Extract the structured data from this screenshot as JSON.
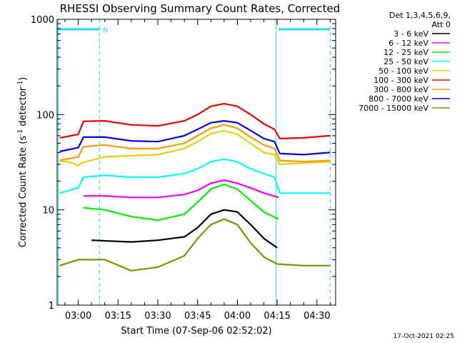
{
  "chart_data": {
    "type": "line",
    "title": "RHESSI Observing Summary Count Rates, Corrected",
    "xlabel": "Start Time (07-Sep-06 02:52:02)",
    "ylabel_main": "Corrected Count Rate (s",
    "ylabel_sup1": "-1",
    "ylabel_mid": " detector",
    "ylabel_sup2": "-1",
    "ylabel_end": ")",
    "yscale": "log",
    "ylim": [
      1,
      1000
    ],
    "xlim_min": [
      -7.967,
      97.033
    ],
    "y_ticks": [
      {
        "value": 1,
        "label": "1"
      },
      {
        "value": 10,
        "label": "10"
      },
      {
        "value": 100,
        "label": "100"
      },
      {
        "value": 1000,
        "label": "1000"
      }
    ],
    "x_ticks": [
      {
        "value": 0,
        "label": "03:00"
      },
      {
        "value": 15,
        "label": "03:15"
      },
      {
        "value": 30,
        "label": "03:30"
      },
      {
        "value": 45,
        "label": "03:45"
      },
      {
        "value": 60,
        "label": "04:00"
      },
      {
        "value": 75,
        "label": "04:15"
      },
      {
        "value": 90,
        "label": "04:30"
      }
    ],
    "legend_header": [
      "Det 1,3,4,5,6,9,",
      "Att 0"
    ],
    "legend_position": "right",
    "timestamp": "17-Oct-2021 02:25",
    "night_marker": {
      "label": "N",
      "segments": [
        [
          -7.967,
          8.0
        ],
        [
          75.5,
          95.0
        ]
      ],
      "dashed_at": [
        8.0,
        95.0
      ]
    },
    "eclipse_lines": [
      -7.5,
      74.6
    ],
    "series": [
      {
        "name": "3 - 6 keV",
        "color": "#000000",
        "points": [
          [
            5,
            4.8
          ],
          [
            20,
            4.6
          ],
          [
            30,
            4.8
          ],
          [
            40,
            5.2
          ],
          [
            45,
            6.5
          ],
          [
            50,
            9
          ],
          [
            55,
            10
          ],
          [
            60,
            9.5
          ],
          [
            65,
            7
          ],
          [
            70,
            5
          ],
          [
            75,
            4
          ]
        ]
      },
      {
        "name": "6 - 12 keV",
        "color": "#ee00ee",
        "points": [
          [
            2,
            14
          ],
          [
            10,
            14
          ],
          [
            20,
            13.5
          ],
          [
            30,
            13.5
          ],
          [
            40,
            14.5
          ],
          [
            45,
            16
          ],
          [
            50,
            19
          ],
          [
            55,
            20.5
          ],
          [
            60,
            19
          ],
          [
            65,
            17
          ],
          [
            70,
            15
          ],
          [
            75.5,
            13.5
          ]
        ]
      },
      {
        "name": "12 - 25 keV",
        "color": "#00ee00",
        "points": [
          [
            2,
            10.5
          ],
          [
            10,
            10
          ],
          [
            20,
            8.5
          ],
          [
            30,
            7.8
          ],
          [
            40,
            9
          ],
          [
            45,
            12
          ],
          [
            50,
            16.5
          ],
          [
            55,
            18.5
          ],
          [
            60,
            16.5
          ],
          [
            65,
            12.5
          ],
          [
            70,
            9.5
          ],
          [
            75.5,
            8
          ]
        ]
      },
      {
        "name": "25 - 50 keV",
        "color": "#00ffff",
        "points": [
          [
            -7,
            15
          ],
          [
            0,
            17
          ],
          [
            2,
            22
          ],
          [
            10,
            23
          ],
          [
            20,
            22
          ],
          [
            30,
            22
          ],
          [
            40,
            24
          ],
          [
            45,
            27
          ],
          [
            50,
            32
          ],
          [
            55,
            34
          ],
          [
            60,
            32
          ],
          [
            65,
            27
          ],
          [
            70,
            24
          ],
          [
            74,
            22
          ],
          [
            76,
            15
          ],
          [
            85,
            15
          ],
          [
            95,
            15
          ]
        ]
      },
      {
        "name": "50 - 100 keV",
        "color": "#e6d200",
        "points": [
          [
            -7,
            33
          ],
          [
            -2,
            31
          ],
          [
            0,
            29
          ],
          [
            1,
            31
          ],
          [
            10,
            36
          ],
          [
            20,
            37
          ],
          [
            30,
            38
          ],
          [
            40,
            44
          ],
          [
            45,
            52
          ],
          [
            50,
            63
          ],
          [
            55,
            68
          ],
          [
            60,
            62
          ],
          [
            65,
            50
          ],
          [
            70,
            40
          ],
          [
            74,
            38
          ],
          [
            76,
            30
          ],
          [
            85,
            31
          ],
          [
            95,
            32
          ]
        ]
      },
      {
        "name": "100 - 300 keV",
        "color": "#ee0000",
        "points": [
          [
            -7,
            57
          ],
          [
            0,
            62
          ],
          [
            2,
            85
          ],
          [
            10,
            86
          ],
          [
            20,
            78
          ],
          [
            30,
            76
          ],
          [
            40,
            86
          ],
          [
            45,
            100
          ],
          [
            50,
            122
          ],
          [
            55,
            130
          ],
          [
            60,
            122
          ],
          [
            65,
            100
          ],
          [
            70,
            80
          ],
          [
            74,
            70
          ],
          [
            76,
            56
          ],
          [
            85,
            57
          ],
          [
            95,
            60
          ]
        ]
      },
      {
        "name": "300 - 800 keV",
        "color": "#ff9900",
        "points": [
          [
            -7,
            33
          ],
          [
            0,
            36
          ],
          [
            2,
            46
          ],
          [
            10,
            48
          ],
          [
            20,
            44
          ],
          [
            30,
            44
          ],
          [
            40,
            50
          ],
          [
            45,
            60
          ],
          [
            50,
            72
          ],
          [
            55,
            78
          ],
          [
            60,
            72
          ],
          [
            65,
            58
          ],
          [
            70,
            48
          ],
          [
            74,
            44
          ],
          [
            76,
            33
          ],
          [
            85,
            32
          ],
          [
            95,
            33
          ]
        ]
      },
      {
        "name": "800 - 7000 keV",
        "color": "#0000ee",
        "points": [
          [
            -7,
            41
          ],
          [
            0,
            45
          ],
          [
            2,
            58
          ],
          [
            10,
            58
          ],
          [
            20,
            53
          ],
          [
            30,
            52
          ],
          [
            40,
            60
          ],
          [
            45,
            70
          ],
          [
            50,
            82
          ],
          [
            55,
            86
          ],
          [
            60,
            82
          ],
          [
            65,
            68
          ],
          [
            70,
            56
          ],
          [
            74,
            52
          ],
          [
            76,
            39
          ],
          [
            85,
            38
          ],
          [
            95,
            40
          ]
        ]
      },
      {
        "name": "7000 - 15000 keV",
        "color": "#8b8b00",
        "points": [
          [
            -7,
            2.6
          ],
          [
            0,
            3
          ],
          [
            10,
            3
          ],
          [
            20,
            2.3
          ],
          [
            30,
            2.5
          ],
          [
            40,
            3.3
          ],
          [
            45,
            5
          ],
          [
            50,
            7
          ],
          [
            55,
            8
          ],
          [
            60,
            7
          ],
          [
            65,
            4.5
          ],
          [
            70,
            3.2
          ],
          [
            75,
            2.7
          ],
          [
            85,
            2.6
          ],
          [
            95,
            2.6
          ]
        ]
      },
      {
        "name": "3 - 6 keV",
        "color": "#000000",
        "points": []
      }
    ]
  }
}
